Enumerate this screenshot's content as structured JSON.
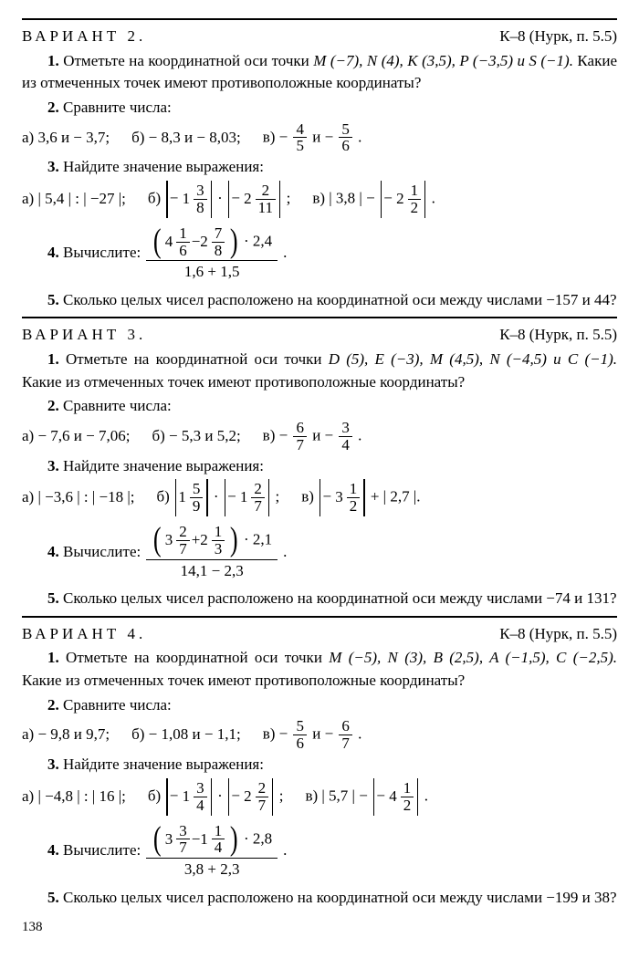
{
  "page_number": "138",
  "variants": [
    {
      "title": "ВАРИАНТ 2.",
      "ref": "К–8 (Нурк, п. 5.5)",
      "t1_a": "1.",
      "t1_b": " Отметьте на координатной оси точки ",
      "t1_pts": "M (−7), N (4), K (3,5), P (−3,5) и S (−1).",
      "t1_c": " Какие из отмеченных точек имеют противоположные координаты?",
      "t2_a": "2.",
      "t2_b": " Сравните числа:",
      "t2_i1": "а) 3,6 и − 3,7;",
      "t2_i2": "б) − 8,3 и − 8,03;",
      "t2_i3a": "в) −",
      "t2_i3n1": "4",
      "t2_i3d1": "5",
      "t2_i3m": " и −",
      "t2_i3n2": "5",
      "t2_i3d2": "6",
      "t2_i3e": ".",
      "t3_a": "3.",
      "t3_b": " Найдите значение выражения:",
      "t3_i1": "а) | 5,4 | : | −27 |;",
      "t3_i2a": "б) ",
      "t3_i2w1": "1",
      "t3_i2n1": "3",
      "t3_i2d1": "8",
      "t3_i2m": " · ",
      "t3_i2w2": "2",
      "t3_i2n2": "2",
      "t3_i2d2": "11",
      "t3_i2e": ";",
      "t3_i3a": "в) | 3,8 | − ",
      "t3_i3w": "2",
      "t3_i3n": "1",
      "t3_i3d": "2",
      "t3_i3e": ".",
      "t4_a": "4.",
      "t4_b": " Вычислите:  ",
      "t4_w1": "4",
      "t4_n1": "1",
      "t4_d1": "6",
      "t4_op": " − ",
      "t4_w2": "2",
      "t4_n2": "7",
      "t4_d2": "8",
      "t4_mul": " · 2,4",
      "t4_den": "1,6 + 1,5",
      "t4_e": ".",
      "t5_a": "5.",
      "t5_b": " Сколько целых чисел расположено на координатной оси между числами −157 и 44?"
    },
    {
      "title": "ВАРИАНТ 3.",
      "ref": "К–8 (Нурк, п. 5.5)",
      "t1_a": "1.",
      "t1_b": " Отметьте на координатной оси точки ",
      "t1_pts": "D (5), E (−3), M (4,5), N (−4,5) и C (−1).",
      "t1_c": " Какие из отмеченных точек имеют противоположные координаты?",
      "t2_a": "2.",
      "t2_b": " Сравните числа:",
      "t2_i1": "а) − 7,6 и − 7,06;",
      "t2_i2": "б) − 5,3 и 5,2;",
      "t2_i3a": "в) −",
      "t2_i3n1": "6",
      "t2_i3d1": "7",
      "t2_i3m": " и −",
      "t2_i3n2": "3",
      "t2_i3d2": "4",
      "t2_i3e": ".",
      "t3_a": "3.",
      "t3_b": " Найдите значение выражения:",
      "t3_i1": "а) | −3,6 | : | −18 |;",
      "t3_i2a": "б) ",
      "t3_i2w1": "1",
      "t3_i2n1": "5",
      "t3_i2d1": "9",
      "t3_i2m": " · ",
      "t3_i2w2": "1",
      "t3_i2n2": "2",
      "t3_i2d2": "7",
      "t3_i2e": ";",
      "t3_i3a": "в) ",
      "t3_i3pre": "− ",
      "t3_i3w": "3",
      "t3_i3n": "1",
      "t3_i3d": "2",
      "t3_i3post": " + | 2,7 |",
      "t3_i3e": ".",
      "t4_a": "4.",
      "t4_b": " Вычислите:  ",
      "t4_w1": "3",
      "t4_n1": "2",
      "t4_d1": "7",
      "t4_op": " + ",
      "t4_w2": "2",
      "t4_n2": "1",
      "t4_d2": "3",
      "t4_mul": " · 2,1",
      "t4_den": "14,1 − 2,3",
      "t4_e": ".",
      "t5_a": "5.",
      "t5_b": " Сколько целых чисел расположено на координатной оси между числами −74 и 131?"
    },
    {
      "title": "ВАРИАНТ 4.",
      "ref": "К–8 (Нурк, п. 5.5)",
      "t1_a": "1.",
      "t1_b": " Отметьте на координатной оси точки ",
      "t1_pts": "M (−5), N (3), B (2,5), A (−1,5), C (−2,5).",
      "t1_c": " Какие из отмеченных точек имеют противоположные координаты?",
      "t2_a": "2.",
      "t2_b": " Сравните числа:",
      "t2_i1": "а) − 9,8 и 9,7;",
      "t2_i2": "б) − 1,08 и − 1,1;",
      "t2_i3a": "в) −",
      "t2_i3n1": "5",
      "t2_i3d1": "6",
      "t2_i3m": " и −",
      "t2_i3n2": "6",
      "t2_i3d2": "7",
      "t2_i3e": ".",
      "t3_a": "3.",
      "t3_b": " Найдите значение выражения:",
      "t3_i1": "а) | −4,8 | : | 16 |;",
      "t3_i2a": "б) ",
      "t3_i2w1": "1",
      "t3_i2n1": "3",
      "t3_i2d1": "4",
      "t3_i2m": " · ",
      "t3_i2w2": "2",
      "t3_i2n2": "2",
      "t3_i2d2": "7",
      "t3_i2e": ";",
      "t3_i3a": "в) | 5,7 | − ",
      "t3_i3pre": "− ",
      "t3_i3w": "4",
      "t3_i3n": "1",
      "t3_i3d": "2",
      "t3_i3e": ".",
      "t4_a": "4.",
      "t4_b": " Вычислите:  ",
      "t4_w1": "3",
      "t4_n1": "3",
      "t4_d1": "7",
      "t4_op": " − ",
      "t4_w2": "1",
      "t4_n2": "1",
      "t4_d2": "4",
      "t4_mul": " · 2,8",
      "t4_den": "3,8 + 2,3",
      "t4_e": ".",
      "t5_a": "5.",
      "t5_b": " Сколько целых чисел расположено на координатной оси между числами −199 и 38?"
    }
  ]
}
